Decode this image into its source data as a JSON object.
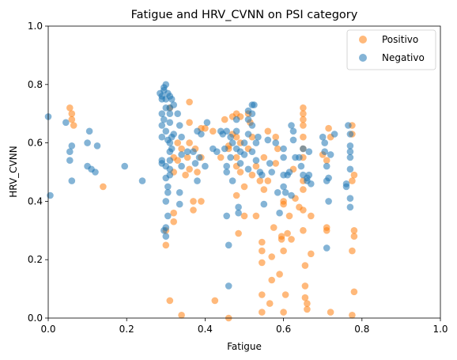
{
  "chart_data": {
    "type": "scatter",
    "title": "Fatigue and HRV_CVNN on PSI category",
    "xlabel": "Fatigue",
    "ylabel": "HRV_CVNN",
    "xlim": [
      0,
      1
    ],
    "ylim": [
      0,
      1
    ],
    "xticks": [
      "0.0",
      "0.2",
      "0.4",
      "0.6",
      "0.8",
      "1.0"
    ],
    "yticks": [
      "0.0",
      "0.2",
      "0.4",
      "0.6",
      "0.8",
      "1.0"
    ],
    "grid": false,
    "legend_position": "top-right",
    "series": [
      {
        "name": "Positivo",
        "color": "#ff7f0e",
        "points": [
          [
            0.055,
            0.72
          ],
          [
            0.06,
            0.7
          ],
          [
            0.06,
            0.68
          ],
          [
            0.065,
            0.66
          ],
          [
            0.14,
            0.45
          ],
          [
            0.3,
            0.25
          ],
          [
            0.3,
            0.3
          ],
          [
            0.31,
            0.06
          ],
          [
            0.31,
            0.72
          ],
          [
            0.32,
            0.55
          ],
          [
            0.32,
            0.5
          ],
          [
            0.32,
            0.36
          ],
          [
            0.32,
            0.33
          ],
          [
            0.33,
            0.6
          ],
          [
            0.33,
            0.54
          ],
          [
            0.34,
            0.58
          ],
          [
            0.34,
            0.01
          ],
          [
            0.35,
            0.49
          ],
          [
            0.355,
            0.55
          ],
          [
            0.36,
            0.74
          ],
          [
            0.36,
            0.67
          ],
          [
            0.36,
            0.6
          ],
          [
            0.36,
            0.51
          ],
          [
            0.37,
            0.4
          ],
          [
            0.37,
            0.37
          ],
          [
            0.375,
            0.58
          ],
          [
            0.38,
            0.5
          ],
          [
            0.39,
            0.65
          ],
          [
            0.39,
            0.55
          ],
          [
            0.39,
            0.4
          ],
          [
            0.4,
            0.65
          ],
          [
            0.42,
            0.64
          ],
          [
            0.425,
            0.06
          ],
          [
            0.44,
            0.55
          ],
          [
            0.45,
            0.68
          ],
          [
            0.46,
            0.59
          ],
          [
            0.46,
            0.58
          ],
          [
            0.46,
            0.0
          ],
          [
            0.47,
            0.69
          ],
          [
            0.47,
            0.63
          ],
          [
            0.48,
            0.7
          ],
          [
            0.48,
            0.62
          ],
          [
            0.48,
            0.55
          ],
          [
            0.48,
            0.52
          ],
          [
            0.48,
            0.42
          ],
          [
            0.485,
            0.29
          ],
          [
            0.49,
            0.69
          ],
          [
            0.49,
            0.6
          ],
          [
            0.49,
            0.5
          ],
          [
            0.5,
            0.45
          ],
          [
            0.5,
            0.35
          ],
          [
            0.51,
            0.7
          ],
          [
            0.51,
            0.58
          ],
          [
            0.515,
            0.67
          ],
          [
            0.52,
            0.49
          ],
          [
            0.52,
            0.62
          ],
          [
            0.53,
            0.52
          ],
          [
            0.53,
            0.35
          ],
          [
            0.54,
            0.47
          ],
          [
            0.545,
            0.26
          ],
          [
            0.545,
            0.23
          ],
          [
            0.545,
            0.19
          ],
          [
            0.545,
            0.08
          ],
          [
            0.545,
            0.02
          ],
          [
            0.55,
            0.55
          ],
          [
            0.55,
            0.44
          ],
          [
            0.56,
            0.64
          ],
          [
            0.56,
            0.47
          ],
          [
            0.565,
            0.05
          ],
          [
            0.57,
            0.13
          ],
          [
            0.57,
            0.21
          ],
          [
            0.575,
            0.31
          ],
          [
            0.58,
            0.62
          ],
          [
            0.58,
            0.53
          ],
          [
            0.585,
            0.58
          ],
          [
            0.59,
            0.15
          ],
          [
            0.595,
            0.28
          ],
          [
            0.595,
            0.27
          ],
          [
            0.6,
            0.23
          ],
          [
            0.6,
            0.39
          ],
          [
            0.6,
            0.4
          ],
          [
            0.6,
            0.02
          ],
          [
            0.605,
            0.08
          ],
          [
            0.61,
            0.29
          ],
          [
            0.615,
            0.35
          ],
          [
            0.62,
            0.27
          ],
          [
            0.625,
            0.51
          ],
          [
            0.63,
            0.41
          ],
          [
            0.64,
            0.38
          ],
          [
            0.65,
            0.72
          ],
          [
            0.65,
            0.7
          ],
          [
            0.65,
            0.68
          ],
          [
            0.65,
            0.66
          ],
          [
            0.65,
            0.62
          ],
          [
            0.65,
            0.58
          ],
          [
            0.65,
            0.55
          ],
          [
            0.65,
            0.47
          ],
          [
            0.65,
            0.44
          ],
          [
            0.65,
            0.37
          ],
          [
            0.65,
            0.3
          ],
          [
            0.655,
            0.18
          ],
          [
            0.655,
            0.11
          ],
          [
            0.655,
            0.07
          ],
          [
            0.66,
            0.05
          ],
          [
            0.66,
            0.03
          ],
          [
            0.67,
            0.35
          ],
          [
            0.67,
            0.22
          ],
          [
            0.7,
            0.56
          ],
          [
            0.71,
            0.54
          ],
          [
            0.71,
            0.31
          ],
          [
            0.71,
            0.3
          ],
          [
            0.715,
            0.65
          ],
          [
            0.72,
            0.02
          ],
          [
            0.72,
            0.62
          ],
          [
            0.775,
            0.66
          ],
          [
            0.775,
            0.63
          ],
          [
            0.775,
            0.47
          ],
          [
            0.775,
            0.23
          ],
          [
            0.78,
            0.3
          ],
          [
            0.78,
            0.28
          ],
          [
            0.78,
            0.09
          ],
          [
            0.78,
            0.49
          ],
          [
            0.775,
            0.01
          ]
        ]
      },
      {
        "name": "Negativo",
        "color": "#1f77b4",
        "points": [
          [
            0.0,
            0.69
          ],
          [
            0.005,
            0.42
          ],
          [
            0.045,
            0.67
          ],
          [
            0.06,
            0.59
          ],
          [
            0.055,
            0.57
          ],
          [
            0.055,
            0.54
          ],
          [
            0.06,
            0.47
          ],
          [
            0.1,
            0.6
          ],
          [
            0.1,
            0.52
          ],
          [
            0.105,
            0.64
          ],
          [
            0.11,
            0.51
          ],
          [
            0.12,
            0.5
          ],
          [
            0.125,
            0.59
          ],
          [
            0.195,
            0.52
          ],
          [
            0.24,
            0.47
          ],
          [
            0.285,
            0.77
          ],
          [
            0.29,
            0.76
          ],
          [
            0.29,
            0.75
          ],
          [
            0.29,
            0.7
          ],
          [
            0.29,
            0.66
          ],
          [
            0.29,
            0.62
          ],
          [
            0.29,
            0.54
          ],
          [
            0.29,
            0.53
          ],
          [
            0.295,
            0.79
          ],
          [
            0.295,
            0.78
          ],
          [
            0.295,
            0.68
          ],
          [
            0.295,
            0.3
          ],
          [
            0.3,
            0.8
          ],
          [
            0.3,
            0.75
          ],
          [
            0.3,
            0.72
          ],
          [
            0.3,
            0.64
          ],
          [
            0.3,
            0.52
          ],
          [
            0.3,
            0.48
          ],
          [
            0.3,
            0.4
          ],
          [
            0.3,
            0.31
          ],
          [
            0.3,
            0.28
          ],
          [
            0.305,
            0.77
          ],
          [
            0.305,
            0.61
          ],
          [
            0.305,
            0.45
          ],
          [
            0.305,
            0.43
          ],
          [
            0.305,
            0.35
          ],
          [
            0.31,
            0.76
          ],
          [
            0.31,
            0.72
          ],
          [
            0.31,
            0.7
          ],
          [
            0.31,
            0.67
          ],
          [
            0.31,
            0.6
          ],
          [
            0.31,
            0.57
          ],
          [
            0.31,
            0.54
          ],
          [
            0.31,
            0.51
          ],
          [
            0.31,
            0.49
          ],
          [
            0.315,
            0.75
          ],
          [
            0.315,
            0.62
          ],
          [
            0.315,
            0.58
          ],
          [
            0.32,
            0.73
          ],
          [
            0.32,
            0.63
          ],
          [
            0.33,
            0.7
          ],
          [
            0.335,
            0.66
          ],
          [
            0.335,
            0.43
          ],
          [
            0.335,
            0.39
          ],
          [
            0.34,
            0.62
          ],
          [
            0.34,
            0.56
          ],
          [
            0.34,
            0.52
          ],
          [
            0.355,
            0.57
          ],
          [
            0.37,
            0.57
          ],
          [
            0.375,
            0.53
          ],
          [
            0.38,
            0.64
          ],
          [
            0.38,
            0.47
          ],
          [
            0.385,
            0.55
          ],
          [
            0.39,
            0.63
          ],
          [
            0.4,
            0.52
          ],
          [
            0.405,
            0.67
          ],
          [
            0.42,
            0.58
          ],
          [
            0.43,
            0.57
          ],
          [
            0.44,
            0.64
          ],
          [
            0.445,
            0.63
          ],
          [
            0.45,
            0.58
          ],
          [
            0.455,
            0.64
          ],
          [
            0.455,
            0.52
          ],
          [
            0.455,
            0.5
          ],
          [
            0.455,
            0.35
          ],
          [
            0.46,
            0.11
          ],
          [
            0.46,
            0.25
          ],
          [
            0.465,
            0.62
          ],
          [
            0.465,
            0.55
          ],
          [
            0.47,
            0.6
          ],
          [
            0.47,
            0.47
          ],
          [
            0.48,
            0.68
          ],
          [
            0.48,
            0.64
          ],
          [
            0.48,
            0.58
          ],
          [
            0.485,
            0.38
          ],
          [
            0.485,
            0.36
          ],
          [
            0.49,
            0.57
          ],
          [
            0.49,
            0.53
          ],
          [
            0.5,
            0.6
          ],
          [
            0.5,
            0.56
          ],
          [
            0.51,
            0.71
          ],
          [
            0.51,
            0.68
          ],
          [
            0.51,
            0.63
          ],
          [
            0.51,
            0.51
          ],
          [
            0.52,
            0.73
          ],
          [
            0.52,
            0.7
          ],
          [
            0.52,
            0.66
          ],
          [
            0.52,
            0.57
          ],
          [
            0.525,
            0.73
          ],
          [
            0.53,
            0.6
          ],
          [
            0.53,
            0.54
          ],
          [
            0.535,
            0.62
          ],
          [
            0.54,
            0.5
          ],
          [
            0.545,
            0.49
          ],
          [
            0.55,
            0.39
          ],
          [
            0.56,
            0.61
          ],
          [
            0.565,
            0.53
          ],
          [
            0.57,
            0.5
          ],
          [
            0.58,
            0.6
          ],
          [
            0.585,
            0.43
          ],
          [
            0.59,
            0.36
          ],
          [
            0.6,
            0.58
          ],
          [
            0.6,
            0.55
          ],
          [
            0.6,
            0.49
          ],
          [
            0.6,
            0.45
          ],
          [
            0.605,
            0.43
          ],
          [
            0.61,
            0.49
          ],
          [
            0.615,
            0.5
          ],
          [
            0.62,
            0.66
          ],
          [
            0.62,
            0.42
          ],
          [
            0.625,
            0.64
          ],
          [
            0.625,
            0.61
          ],
          [
            0.63,
            0.55
          ],
          [
            0.64,
            0.55
          ],
          [
            0.645,
            0.52
          ],
          [
            0.65,
            0.58
          ],
          [
            0.65,
            0.49
          ],
          [
            0.66,
            0.48
          ],
          [
            0.66,
            0.47
          ],
          [
            0.665,
            0.57
          ],
          [
            0.665,
            0.49
          ],
          [
            0.67,
            0.46
          ],
          [
            0.7,
            0.62
          ],
          [
            0.705,
            0.6
          ],
          [
            0.705,
            0.57
          ],
          [
            0.71,
            0.52
          ],
          [
            0.71,
            0.47
          ],
          [
            0.715,
            0.48
          ],
          [
            0.715,
            0.4
          ],
          [
            0.71,
            0.24
          ],
          [
            0.72,
            0.56
          ],
          [
            0.73,
            0.63
          ],
          [
            0.76,
            0.46
          ],
          [
            0.76,
            0.45
          ],
          [
            0.765,
            0.66
          ],
          [
            0.77,
            0.63
          ],
          [
            0.77,
            0.59
          ],
          [
            0.77,
            0.57
          ],
          [
            0.77,
            0.55
          ],
          [
            0.77,
            0.51
          ],
          [
            0.77,
            0.41
          ],
          [
            0.77,
            0.38
          ]
        ]
      }
    ]
  }
}
